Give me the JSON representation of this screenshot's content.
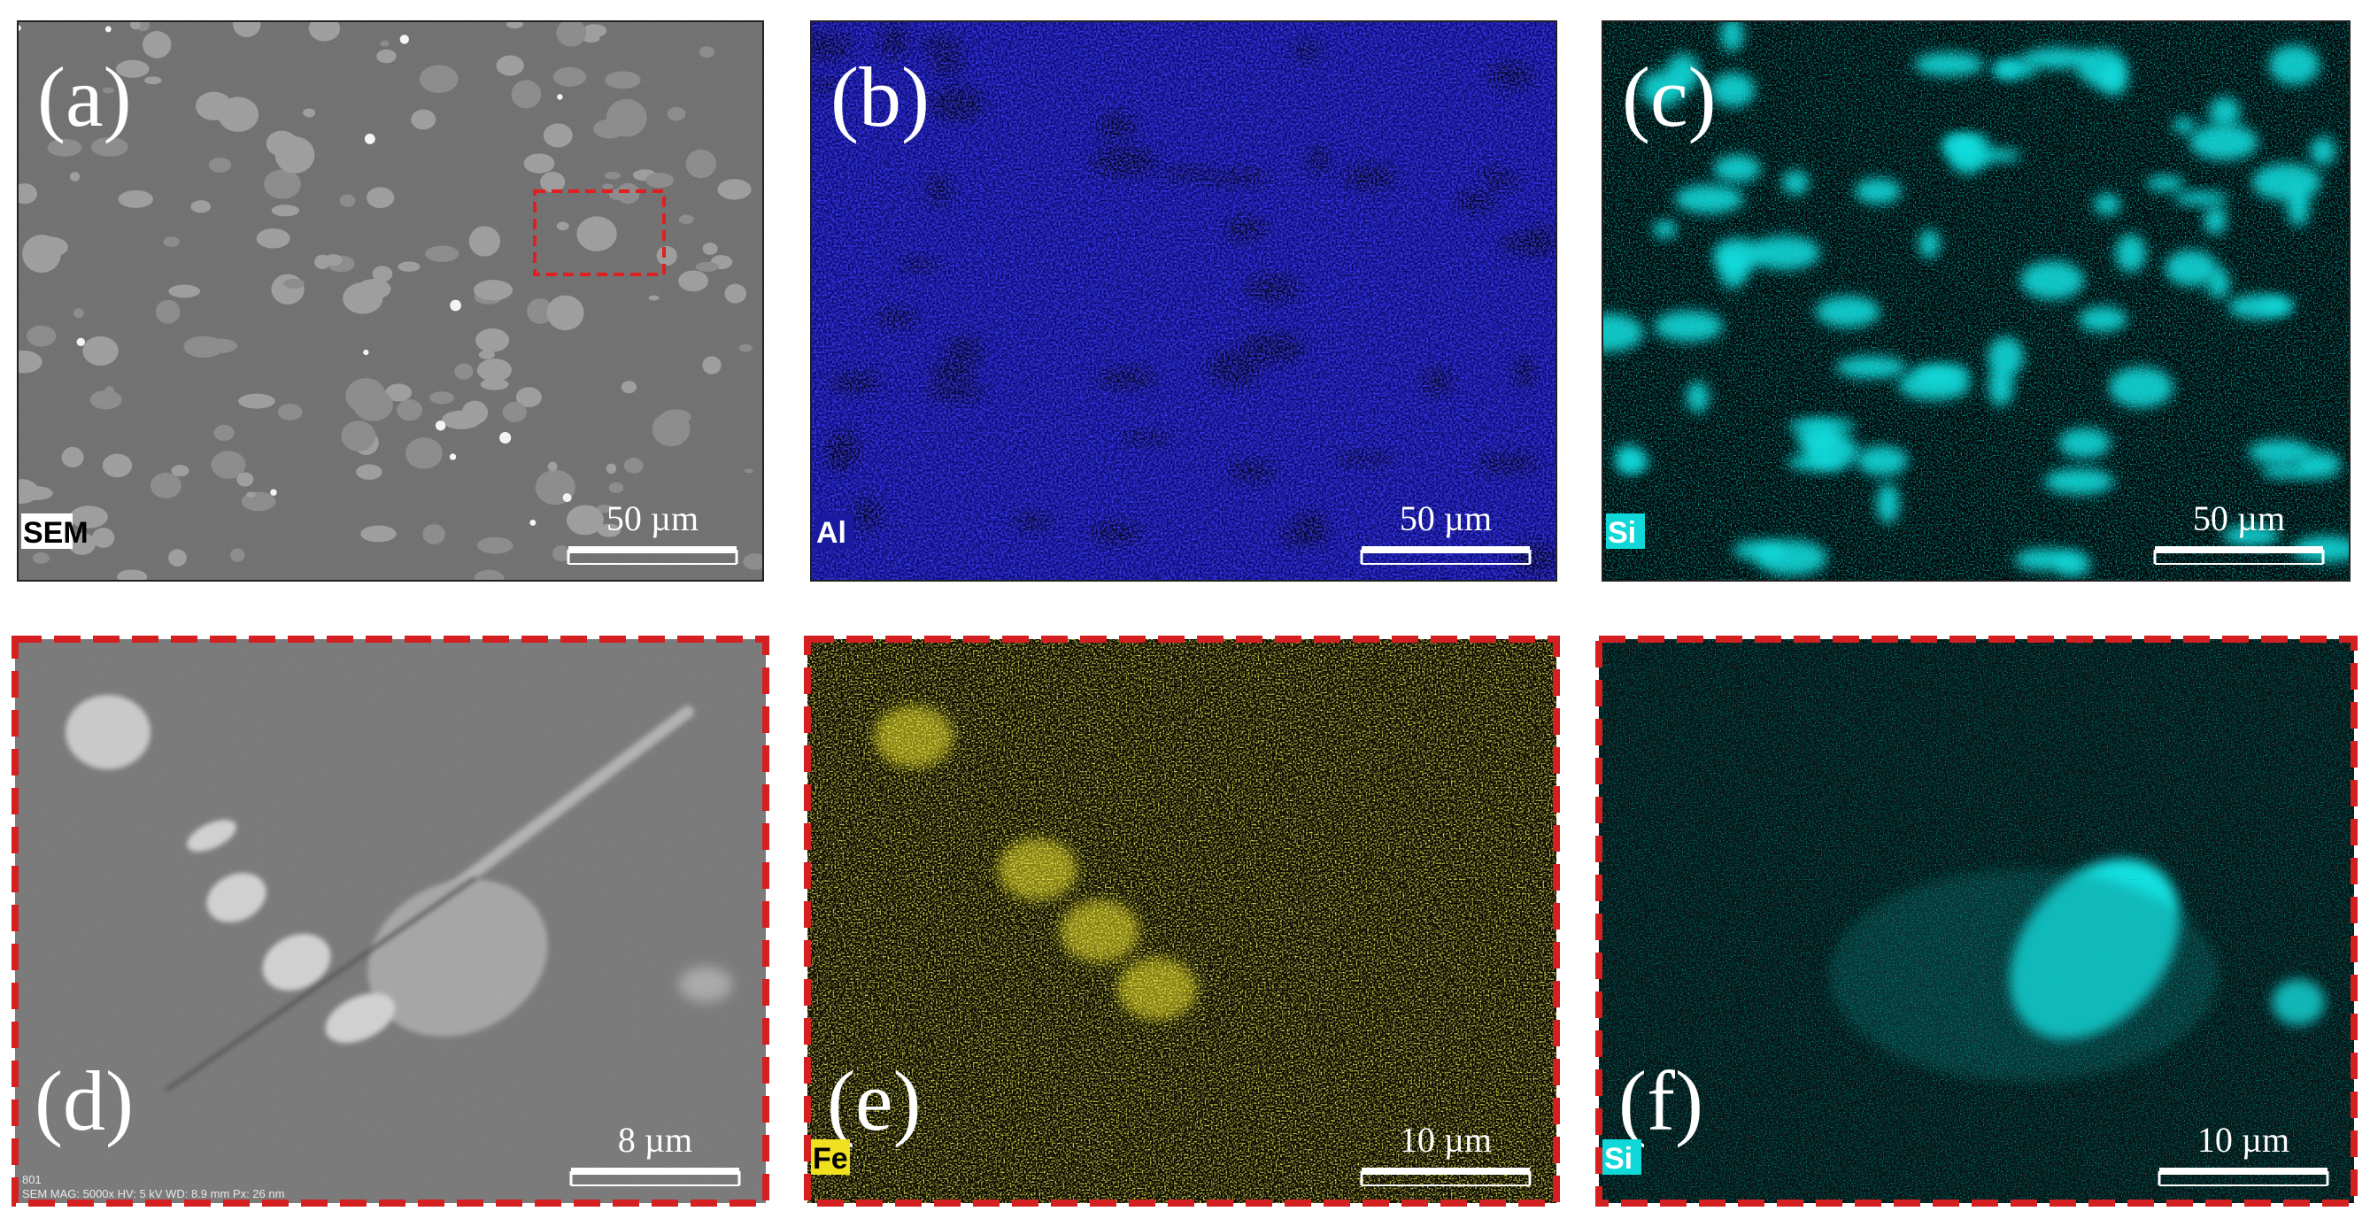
{
  "panels": [
    {
      "label": "(a)",
      "tag": "SEM",
      "scale_bar": "50 µm"
    },
    {
      "label": "(b)",
      "tag": "Al",
      "scale_bar": "50 µm"
    },
    {
      "label": "(c)",
      "tag": "Si",
      "scale_bar": "50 µm"
    },
    {
      "label": "(d)",
      "scale_bar": "8 µm",
      "footer": [
        "801",
        "SEM   MAG: 5000x   HV: 5 kV   WD: 8.9 mm   Px: 26 nm"
      ]
    },
    {
      "label": "(e)",
      "tag": "Fe",
      "scale_bar": "10 µm"
    },
    {
      "label": "(f)",
      "tag": "Si",
      "scale_bar": "10 µm"
    }
  ]
}
